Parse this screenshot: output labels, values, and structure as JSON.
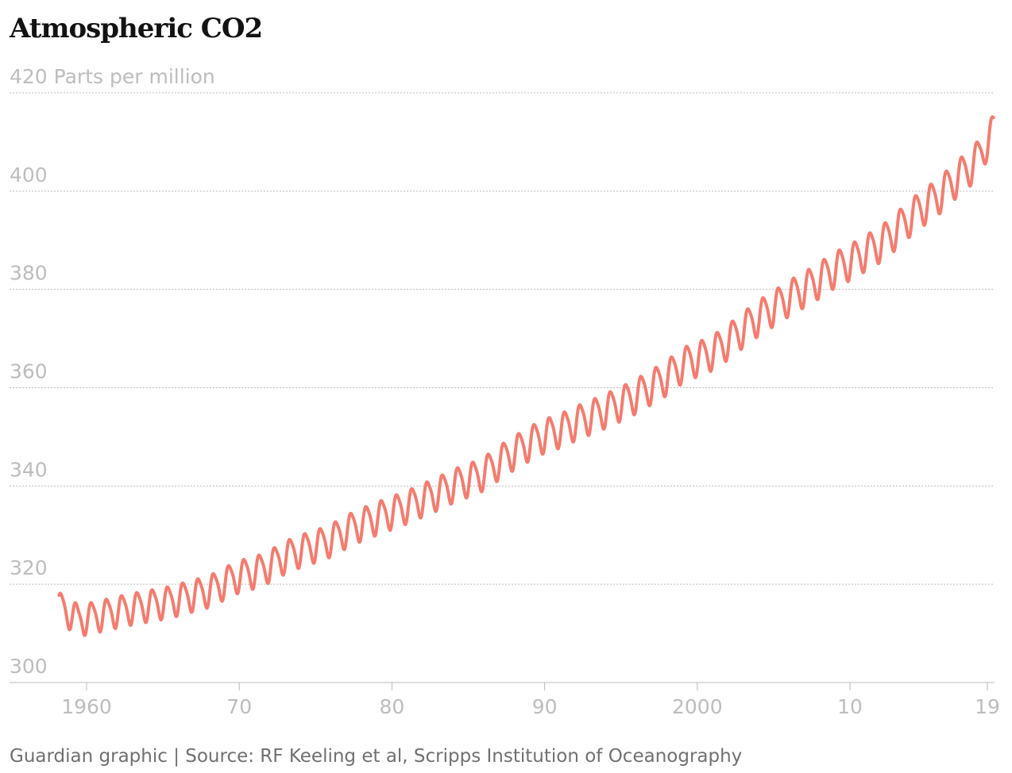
{
  "chart_data": {
    "type": "line",
    "title": "Atmospheric CO2",
    "ylabel": "Parts per million",
    "ylim": [
      300,
      420
    ],
    "xlim": [
      1958.2,
      2019.4
    ],
    "y_ticks": [
      300,
      320,
      340,
      360,
      380,
      400,
      420
    ],
    "x_ticks": [
      {
        "value": 1960,
        "label": "1960"
      },
      {
        "value": 1970,
        "label": "70"
      },
      {
        "value": 1980,
        "label": "80"
      },
      {
        "value": 1990,
        "label": "90"
      },
      {
        "value": 2000,
        "label": "2000"
      },
      {
        "value": 2010,
        "label": "10"
      },
      {
        "value": 2019,
        "label": "19"
      }
    ],
    "grid": true,
    "series": [
      {
        "color": "#f47c6e",
        "x": [
          1958.2,
          1958.5,
          1959,
          1960,
          1961,
          1962,
          1963,
          1964,
          1965,
          1966,
          1967,
          1968,
          1969,
          1970,
          1971,
          1972,
          1973,
          1974,
          1975,
          1976,
          1977,
          1978,
          1979,
          1980,
          1981,
          1982,
          1983,
          1984,
          1985,
          1986,
          1987,
          1988,
          1989,
          1990,
          1991,
          1992,
          1993,
          1994,
          1995,
          1996,
          1997,
          1998,
          1999,
          2000,
          2001,
          2002,
          2003,
          2004,
          2005,
          2006,
          2007,
          2008,
          2009,
          2010,
          2011,
          2012,
          2013,
          2014,
          2015,
          2016,
          2017,
          2018,
          2019,
          2019.4
        ],
        "y": [
          315.5,
          317.2,
          312.3,
          313.2,
          313.8,
          314.6,
          315.2,
          315.8,
          316.3,
          317.0,
          318.0,
          318.6,
          320.3,
          322.0,
          322.5,
          323.8,
          325.8,
          327.0,
          328.0,
          329.0,
          331.0,
          332.4,
          333.6,
          334.8,
          335.9,
          337.4,
          338.6,
          340.3,
          341.4,
          342.5,
          345.0,
          347.0,
          348.8,
          350.6,
          351.3,
          353.0,
          354.2,
          355.5,
          357.0,
          358.4,
          360.5,
          362.0,
          365.0,
          366.0,
          367.2,
          369.5,
          372.0,
          374.5,
          376.3,
          378.5,
          380.2,
          382.0,
          384.4,
          385.6,
          387.7,
          389.3,
          392.0,
          395.0,
          397.4,
          399.5,
          403.0,
          405.0,
          409.5,
          413.6
        ]
      }
    ]
  },
  "footer": {
    "source": "Guardian graphic | Source: RF Keeling et al, Scripps Institution of Oceanography"
  },
  "colors": {
    "line": "#f47c6e",
    "grid": "#bbbbbb",
    "tick_text": "#bdbdbd",
    "title": "#121212",
    "source": "#707070"
  }
}
